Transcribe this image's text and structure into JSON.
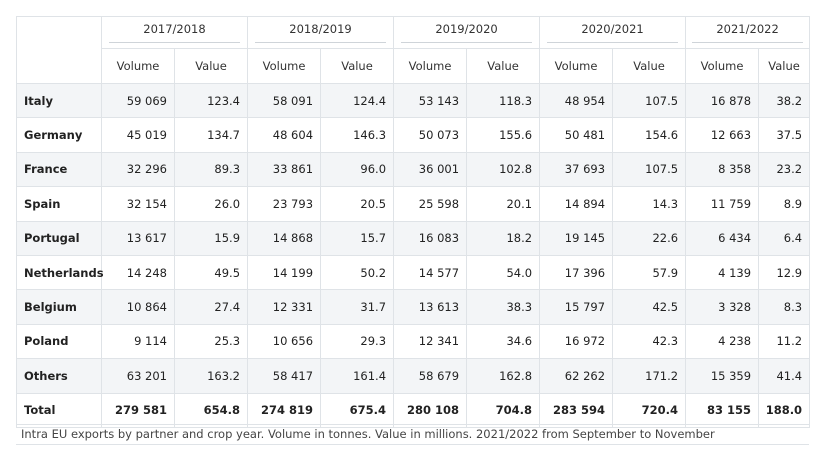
{
  "table": {
    "years": [
      "2017/2018",
      "2018/2019",
      "2019/2020",
      "2020/2021",
      "2021/2022"
    ],
    "sub_headers": [
      "Volume",
      "Value"
    ],
    "rows": [
      {
        "country": "Italy",
        "cells": [
          "59 069",
          "123.4",
          "58 091",
          "124.4",
          "53 143",
          "118.3",
          "48 954",
          "107.5",
          "16 878",
          "38.2"
        ]
      },
      {
        "country": "Germany",
        "cells": [
          "45 019",
          "134.7",
          "48 604",
          "146.3",
          "50 073",
          "155.6",
          "50 481",
          "154.6",
          "12 663",
          "37.5"
        ]
      },
      {
        "country": "France",
        "cells": [
          "32 296",
          "89.3",
          "33 861",
          "96.0",
          "36 001",
          "102.8",
          "37 693",
          "107.5",
          "8 358",
          "23.2"
        ]
      },
      {
        "country": "Spain",
        "cells": [
          "32 154",
          "26.0",
          "23 793",
          "20.5",
          "25 598",
          "20.1",
          "14 894",
          "14.3",
          "11 759",
          "8.9"
        ]
      },
      {
        "country": "Portugal",
        "cells": [
          "13 617",
          "15.9",
          "14 868",
          "15.7",
          "16 083",
          "18.2",
          "19 145",
          "22.6",
          "6 434",
          "6.4"
        ]
      },
      {
        "country": "Netherlands",
        "cells": [
          "14 248",
          "49.5",
          "14 199",
          "50.2",
          "14 577",
          "54.0",
          "17 396",
          "57.9",
          "4 139",
          "12.9"
        ]
      },
      {
        "country": "Belgium",
        "cells": [
          "10 864",
          "27.4",
          "12 331",
          "31.7",
          "13 613",
          "38.3",
          "15 797",
          "42.5",
          "3 328",
          "8.3"
        ]
      },
      {
        "country": "Poland",
        "cells": [
          "9 114",
          "25.3",
          "10 656",
          "29.3",
          "12 341",
          "34.6",
          "16 972",
          "42.3",
          "4 238",
          "11.2"
        ]
      },
      {
        "country": "Others",
        "cells": [
          "63 201",
          "163.2",
          "58 417",
          "161.4",
          "58 679",
          "162.8",
          "62 262",
          "171.2",
          "15 359",
          "41.4"
        ]
      },
      {
        "country": "Total",
        "cells": [
          "279 581",
          "654.8",
          "274 819",
          "675.4",
          "280 108",
          "704.8",
          "283 594",
          "720.4",
          "83 155",
          "188.0"
        ]
      }
    ]
  },
  "footnote": "Intra EU exports by partner and crop year. Volume in tonnes. Value in millions. 2021/2022 from September to November"
}
